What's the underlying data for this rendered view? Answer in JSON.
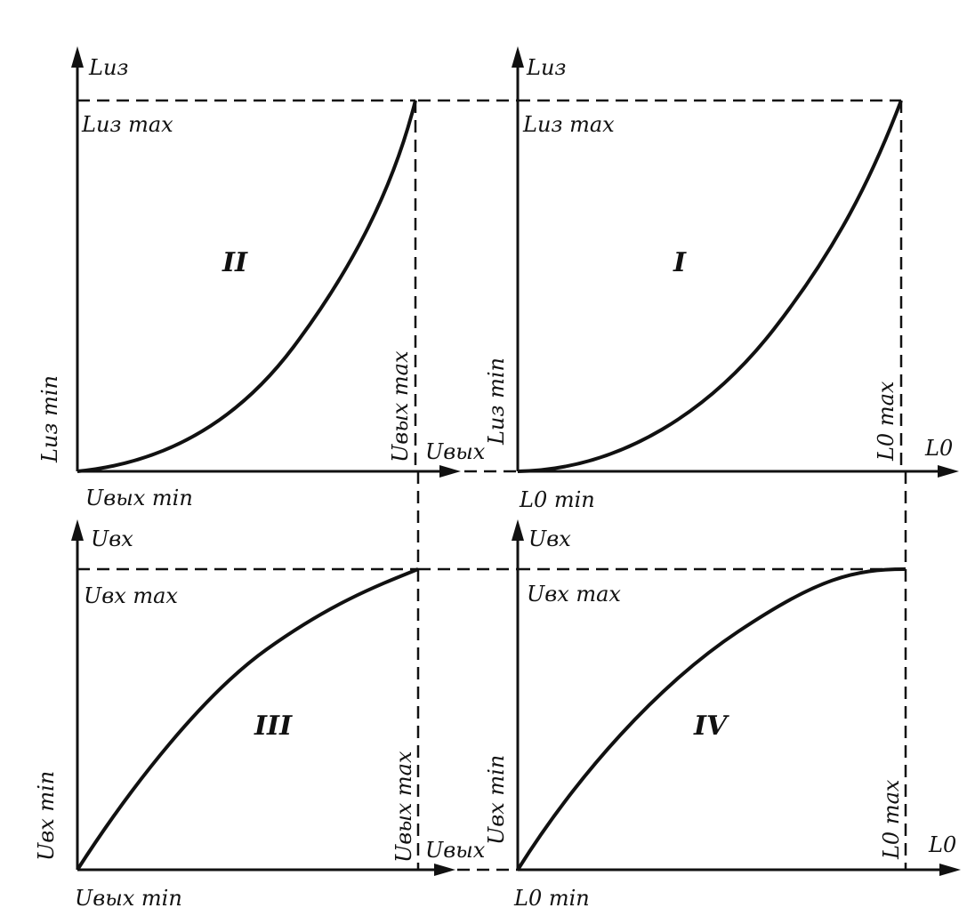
{
  "quadrants": {
    "I": {
      "roman": "I",
      "y_axis": "Lиз",
      "y_max": "Lиз max",
      "y_min": "Lиз min",
      "x_axis": "L0",
      "x_max": "L0 max",
      "x_min": "L0 min"
    },
    "II": {
      "roman": "II",
      "y_axis": "Lиз",
      "y_max": "Lиз max",
      "y_min": "Lиз min",
      "x_axis": "Uвых",
      "x_max": "Uвых max",
      "x_min": "Uвых min"
    },
    "III": {
      "roman": "III",
      "y_axis": "Uвх",
      "y_max": "Uвх max",
      "y_min": "Uвх min",
      "x_axis": "Uвых",
      "x_max": "Uвых max",
      "x_min": "Uвых min"
    },
    "IV": {
      "roman": "IV",
      "y_axis": "Uвх",
      "y_max": "Uвх max",
      "y_min": "Uвх min",
      "x_axis": "L0",
      "x_max": "L0 max",
      "x_min": "L0 min"
    }
  }
}
